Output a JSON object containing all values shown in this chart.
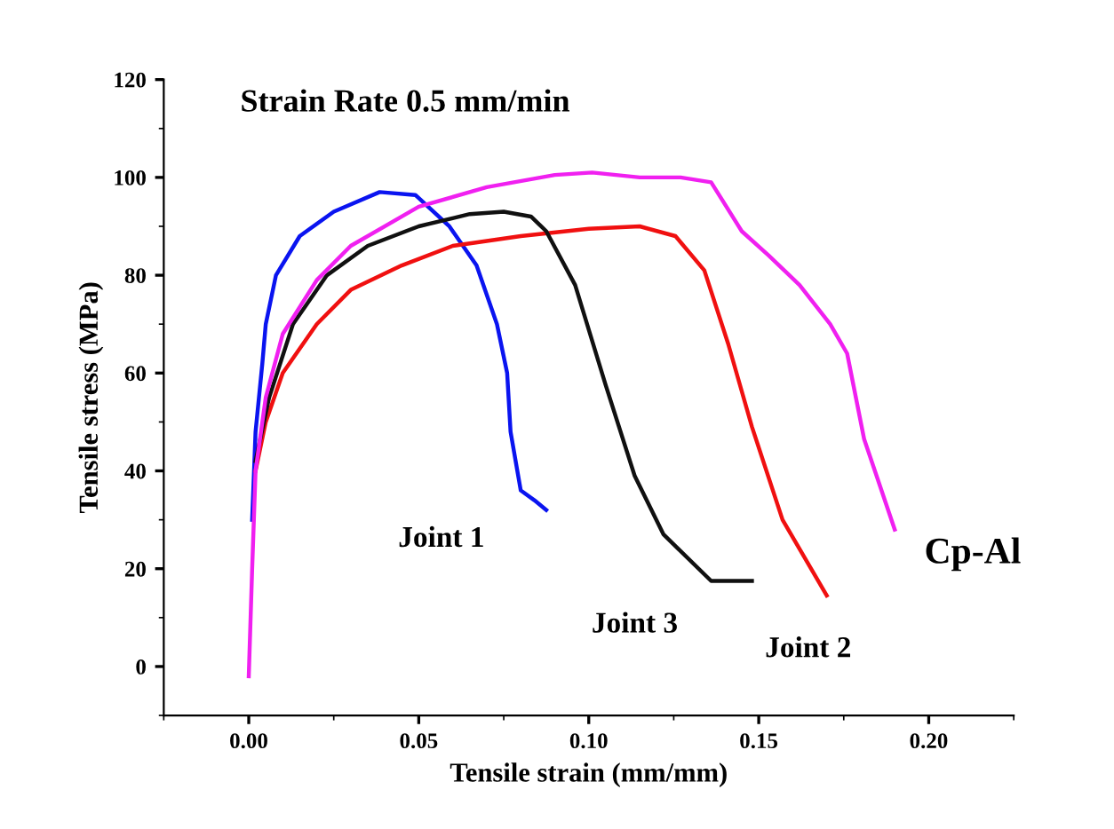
{
  "chart_data": {
    "type": "line",
    "title": "Strain Rate 0.5 mm/min",
    "xlabel": "Tensile strain (mm/mm)",
    "ylabel": "Tensile stress (MPa)",
    "xlim": [
      -0.025,
      0.225
    ],
    "ylim": [
      -10,
      120
    ],
    "xticks": [
      {
        "value": 0,
        "label": "0.00"
      },
      0.05,
      {
        "value": 0.1,
        "label": "0.10"
      },
      0.15,
      {
        "value": 0.2,
        "label": "0.20"
      }
    ],
    "yticks": [
      0,
      20,
      40,
      60,
      80,
      100,
      120
    ],
    "grid": false,
    "legend": false,
    "marker": "none",
    "line_style": "solid",
    "series": [
      {
        "name": "Joint 1",
        "color": "#0a14f0",
        "x": [
          0.001,
          0.002,
          0.004,
          0.005,
          0.008,
          0.015,
          0.025,
          0.0385,
          0.049,
          0.059,
          0.067,
          0.073,
          0.076,
          0.077,
          0.079,
          0.08,
          0.084,
          0.0875
        ],
        "values": [
          30,
          48,
          62,
          70,
          80,
          88,
          93,
          97,
          96.4,
          90,
          82,
          70,
          60,
          48,
          40,
          36,
          34,
          32
        ]
      },
      {
        "name": "Joint 2",
        "color": "#f01010",
        "x": [
          0.002,
          0.005,
          0.01,
          0.02,
          0.03,
          0.045,
          0.06,
          0.08,
          0.1,
          0.115,
          0.1255,
          0.134,
          0.141,
          0.148,
          0.157,
          0.17
        ],
        "values": [
          40,
          50,
          60,
          70,
          77,
          82,
          86,
          88,
          89.5,
          90,
          88,
          81,
          66,
          49,
          30,
          14.5
        ]
      },
      {
        "name": "Joint 3",
        "color": "#101010",
        "x": [
          0.002,
          0.006,
          0.013,
          0.023,
          0.035,
          0.05,
          0.065,
          0.075,
          0.083,
          0.0875,
          0.096,
          0.105,
          0.1135,
          0.122,
          0.136,
          0.148
        ],
        "values": [
          42,
          55,
          70,
          80,
          86,
          90,
          92.5,
          93,
          92,
          89,
          78,
          57.5,
          39,
          27,
          17.5,
          17.5
        ]
      },
      {
        "name": "Cp-Al",
        "color": "#f020f0",
        "x": [
          0,
          0.001,
          0.002,
          0.005,
          0.01,
          0.02,
          0.03,
          0.05,
          0.07,
          0.09,
          0.101,
          0.115,
          0.127,
          0.136,
          0.145,
          0.153,
          0.162,
          0.171,
          0.176,
          0.181,
          0.19
        ],
        "values": [
          -2,
          20,
          40,
          55,
          68,
          79,
          86,
          94,
          98,
          100.5,
          101,
          100,
          100,
          99,
          89,
          84,
          78,
          70,
          64,
          46.5,
          28
        ]
      }
    ]
  }
}
